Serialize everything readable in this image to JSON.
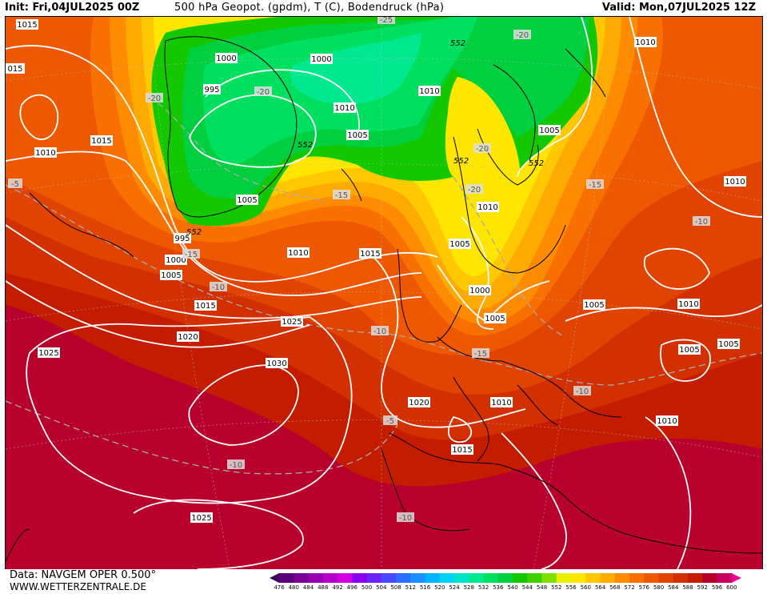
{
  "header": {
    "init": "Init: Fri,04JUL2025 00Z",
    "fields": "500 hPa Geopot. (gpdm), T (C), Bodendruck (hPa)",
    "valid": "Valid: Mon,07JUL2025 12Z"
  },
  "footer": {
    "data_source": "Data: NAVGEM OPER 0.500°",
    "website": "WWW.WETTERZENTRALE.DE"
  },
  "legend": {
    "values": [
      476,
      480,
      484,
      488,
      492,
      496,
      500,
      504,
      508,
      512,
      516,
      520,
      524,
      528,
      532,
      536,
      540,
      544,
      548,
      552,
      556,
      560,
      564,
      568,
      572,
      576,
      580,
      584,
      588,
      592,
      596,
      600
    ],
    "colors": [
      "#3c0058",
      "#5a0078",
      "#7a0096",
      "#9600b0",
      "#b400c8",
      "#d200e0",
      "#8a00f0",
      "#6a24f8",
      "#4a48ff",
      "#2e6cff",
      "#1a90ff",
      "#00b4ff",
      "#00d4f0",
      "#00e4c8",
      "#00e890",
      "#00e060",
      "#00d040",
      "#14c800",
      "#40d000",
      "#80e000",
      "#e8f000",
      "#ffe600",
      "#ffc800",
      "#ffaa00",
      "#ff8c00",
      "#f87000",
      "#ee5800",
      "#e04400",
      "#d23000",
      "#c41c00",
      "#b4002a",
      "#c80060",
      "#e80098"
    ]
  },
  "map_labels": {
    "pressure": [
      "1015",
      "015",
      "1010",
      "1015",
      "1000",
      "995",
      "1000",
      "1010",
      "1005",
      "1005",
      "995",
      "1000",
      "1005",
      "1010",
      "1015",
      "1015",
      "1020",
      "1025",
      "1030",
      "1025",
      "1020",
      "1025",
      "1015",
      "1010",
      "1005",
      "1010",
      "1005",
      "1000",
      "1005",
      "1010",
      "1005",
      "1010",
      "1005",
      "1005",
      "1010",
      "1010",
      "1010"
    ],
    "geopotential": [
      "552",
      "552",
      "552",
      "552",
      "552"
    ],
    "temperature": [
      "-20",
      "-20",
      "-25",
      "-20",
      "-20",
      "-20",
      "-15",
      "-15",
      "-15",
      "-10",
      "-10",
      "-15",
      "-10",
      "-5",
      "-10",
      "-10",
      "-5",
      "-10",
      "-15",
      "-10"
    ]
  }
}
